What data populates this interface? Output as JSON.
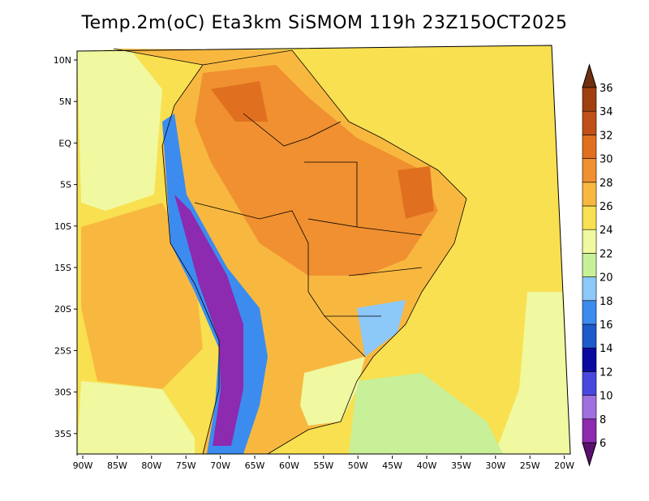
{
  "title": "Temp.2m(oC) Eta3km SiSMOM 119h 23Z15OCT2025",
  "lat_ticks": [
    "10N",
    "5N",
    "EQ",
    "5S",
    "10S",
    "15S",
    "20S",
    "25S",
    "30S",
    "35S"
  ],
  "lon_ticks": [
    "90W",
    "85W",
    "80W",
    "75W",
    "70W",
    "65W",
    "60W",
    "55W",
    "50W",
    "45W",
    "40W",
    "35W",
    "30W",
    "25W",
    "20W"
  ],
  "colorbar": {
    "labels": [
      "6",
      "8",
      "10",
      "12",
      "14",
      "16",
      "18",
      "20",
      "22",
      "24",
      "26",
      "28",
      "30",
      "32",
      "34",
      "36"
    ],
    "colors": [
      "#5a1070",
      "#8c2ab0",
      "#a070e0",
      "#4848e0",
      "#0a0aa0",
      "#1e5acc",
      "#3c8cf0",
      "#8cc8f8",
      "#c8f098",
      "#f0f8a0",
      "#f8e050",
      "#f8b840",
      "#f09030",
      "#e07020",
      "#c05018",
      "#a04010",
      "#703010"
    ]
  },
  "chart_data": {
    "type": "heatmap",
    "variable": "Temp.2m(oC)",
    "model": "Eta3km SiSMOM",
    "forecast_hour": "119h",
    "valid_time": "23Z15OCT2025",
    "lon_range": [
      "90W",
      "20W"
    ],
    "lat_range": [
      "10N",
      "35S"
    ],
    "colorbar_min": 6,
    "colorbar_max": 36,
    "colorbar_step": 2
  }
}
